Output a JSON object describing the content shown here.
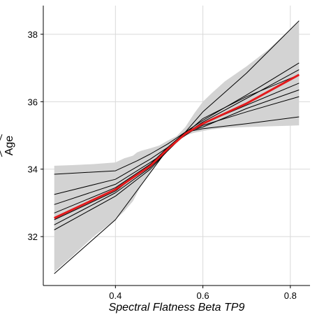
{
  "chart_data": {
    "type": "line",
    "title": "",
    "xlabel": "Spectral Flatness Beta TP9",
    "ylabel": "Age",
    "ylabel_decoration": "hat",
    "xlim": [
      0.235,
      0.845
    ],
    "ylim": [
      30.55,
      38.85
    ],
    "xticks": [
      0.4,
      0.6,
      0.8
    ],
    "xtick_labels": [
      "0.4",
      "0.6",
      "0.8"
    ],
    "yticks": [
      32,
      34,
      36,
      38
    ],
    "ytick_labels": [
      "32",
      "34",
      "36",
      "38"
    ],
    "grid": true,
    "legend": "none",
    "colors": {
      "main": "#e31a1c",
      "lines": "#000000",
      "band": "#d3d3d3",
      "grid": "#d9d9d9",
      "axis": "#000000"
    },
    "band": {
      "x": [
        0.26,
        0.3,
        0.35,
        0.4,
        0.42,
        0.44,
        0.45,
        0.46,
        0.48,
        0.5,
        0.52,
        0.54,
        0.56,
        0.58,
        0.6,
        0.62,
        0.65,
        0.7,
        0.75,
        0.8,
        0.82
      ],
      "upper": [
        34.1,
        34.12,
        34.15,
        34.2,
        34.32,
        34.4,
        34.5,
        34.55,
        34.62,
        34.7,
        34.85,
        34.98,
        35.25,
        35.65,
        36.0,
        36.25,
        36.6,
        37.05,
        37.55,
        38.15,
        38.4
      ],
      "lower": [
        30.95,
        31.4,
        32.0,
        32.5,
        32.75,
        33.05,
        33.3,
        33.55,
        33.9,
        34.25,
        34.6,
        34.85,
        35.0,
        35.08,
        35.13,
        35.18,
        35.22,
        35.25,
        35.27,
        35.29,
        35.3
      ]
    },
    "series": [
      {
        "color": "red",
        "x": [
          0.26,
          0.4,
          0.48,
          0.52,
          0.56,
          0.6,
          0.7,
          0.82
        ],
        "y": [
          32.55,
          33.4,
          34.1,
          34.6,
          35.05,
          35.35,
          35.95,
          36.8
        ]
      },
      {
        "color": "black",
        "x": [
          0.26,
          0.4,
          0.48,
          0.52,
          0.56,
          0.6,
          0.7,
          0.82
        ],
        "y": [
          30.9,
          32.5,
          33.9,
          34.6,
          35.1,
          35.7,
          36.85,
          38.4
        ]
      },
      {
        "color": "black",
        "x": [
          0.26,
          0.4,
          0.45,
          0.48,
          0.52,
          0.56,
          0.6,
          0.7,
          0.82
        ],
        "y": [
          33.85,
          33.95,
          34.25,
          34.45,
          34.75,
          35.1,
          35.2,
          35.35,
          35.55
        ]
      },
      {
        "color": "black",
        "x": [
          0.26,
          0.4,
          0.48,
          0.52,
          0.56,
          0.6,
          0.7,
          0.82
        ],
        "y": [
          33.25,
          33.7,
          34.3,
          34.65,
          35.1,
          35.25,
          35.8,
          36.35
        ]
      },
      {
        "color": "black",
        "x": [
          0.26,
          0.4,
          0.48,
          0.52,
          0.56,
          0.6,
          0.7,
          0.82
        ],
        "y": [
          32.95,
          33.55,
          34.2,
          34.55,
          35.05,
          35.3,
          35.7,
          36.15
        ]
      },
      {
        "color": "black",
        "x": [
          0.26,
          0.4,
          0.48,
          0.52,
          0.56,
          0.6,
          0.7,
          0.82
        ],
        "y": [
          32.7,
          33.45,
          34.15,
          34.6,
          35.05,
          35.4,
          36.1,
          36.95
        ]
      },
      {
        "color": "black",
        "x": [
          0.26,
          0.4,
          0.48,
          0.52,
          0.56,
          0.6,
          0.7,
          0.82
        ],
        "y": [
          32.35,
          33.3,
          34.05,
          34.55,
          35.1,
          35.45,
          36.2,
          37.15
        ]
      },
      {
        "color": "black",
        "x": [
          0.26,
          0.4,
          0.48,
          0.52,
          0.56,
          0.6,
          0.7,
          0.82
        ],
        "y": [
          32.2,
          33.2,
          34.0,
          34.55,
          35.05,
          35.5,
          36.15,
          36.8
        ]
      },
      {
        "color": "black",
        "x": [
          0.26,
          0.4,
          0.48,
          0.52,
          0.56,
          0.6,
          0.7,
          0.82
        ],
        "y": [
          32.5,
          33.35,
          34.15,
          34.65,
          35.0,
          35.35,
          35.9,
          36.55
        ]
      }
    ]
  }
}
